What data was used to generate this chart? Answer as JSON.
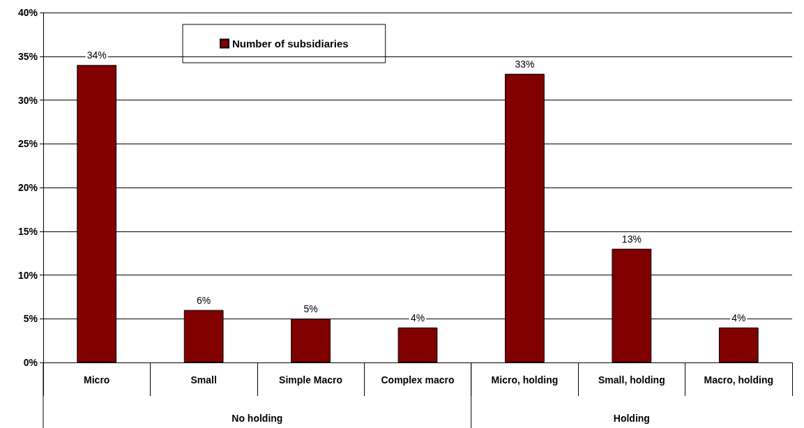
{
  "chart_data": {
    "type": "bar",
    "categories": [
      "Micro",
      "Small",
      "Simple Macro",
      "Complex macro",
      "Micro, holding",
      "Small, holding",
      "Macro, holding"
    ],
    "series": [
      {
        "name": "Number of subsidiaries",
        "color": "#800000",
        "values": [
          34,
          6,
          5,
          4,
          33,
          13,
          4
        ],
        "value_labels": [
          "34%",
          "6%",
          "5%",
          "4%",
          "33%",
          "13%",
          "4%"
        ]
      }
    ],
    "annotations": [
      "No holding",
      "Holding"
    ],
    "ylim": [
      0,
      40
    ],
    "yticks": [
      {
        "value": 0,
        "label": "0%"
      },
      {
        "value": 5,
        "label": "5%"
      },
      {
        "value": 10,
        "label": "10%"
      },
      {
        "value": 15,
        "label": "15%"
      },
      {
        "value": 20,
        "label": "20%"
      },
      {
        "value": 25,
        "label": "25%"
      },
      {
        "value": 30,
        "label": "30%"
      },
      {
        "value": 35,
        "label": "35%"
      },
      {
        "value": 40,
        "label": "40%"
      }
    ],
    "grid": "y",
    "legend": "top"
  }
}
